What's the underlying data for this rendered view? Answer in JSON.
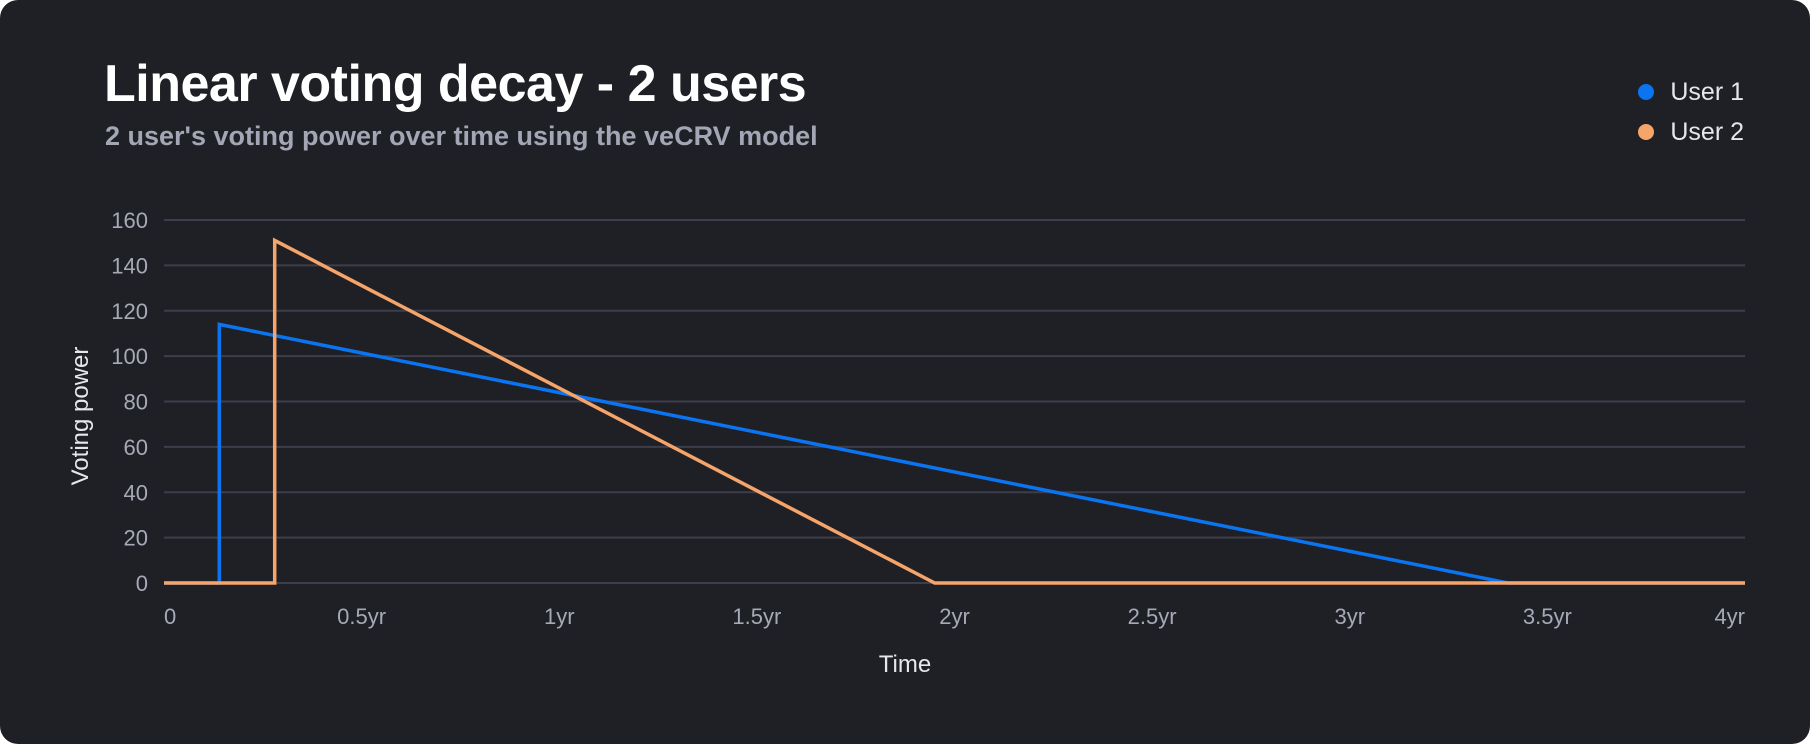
{
  "chart_data": {
    "type": "line",
    "title": "Linear voting decay - 2 users",
    "subtitle": "2 user's voting power over time using the veCRV model",
    "xlabel": "Time",
    "ylabel": "Voting power",
    "xlim": [
      0,
      4
    ],
    "ylim": [
      0,
      160
    ],
    "x_ticks": [
      0,
      0.5,
      1,
      1.5,
      2,
      2.5,
      3,
      3.5,
      4
    ],
    "x_tick_labels": [
      "0",
      "0.5yr",
      "1yr",
      "1.5yr",
      "2yr",
      "2.5yr",
      "3yr",
      "3.5yr",
      "4yr"
    ],
    "y_ticks": [
      0,
      20,
      40,
      60,
      80,
      100,
      120,
      140,
      160
    ],
    "y_tick_labels": [
      "0",
      "20",
      "40",
      "60",
      "80",
      "100",
      "120",
      "140",
      "160"
    ],
    "grid": true,
    "legend_position": "top-right",
    "series": [
      {
        "name": "User 1",
        "color": "#0b74f0",
        "points": [
          [
            0,
            0
          ],
          [
            0.14,
            0
          ],
          [
            0.14,
            114
          ],
          [
            3.4,
            0
          ],
          [
            4,
            0
          ]
        ]
      },
      {
        "name": "User 2",
        "color": "#f5a46a",
        "points": [
          [
            0,
            0
          ],
          [
            0.28,
            0
          ],
          [
            0.28,
            151
          ],
          [
            1.95,
            0
          ],
          [
            4,
            0
          ]
        ]
      }
    ]
  }
}
